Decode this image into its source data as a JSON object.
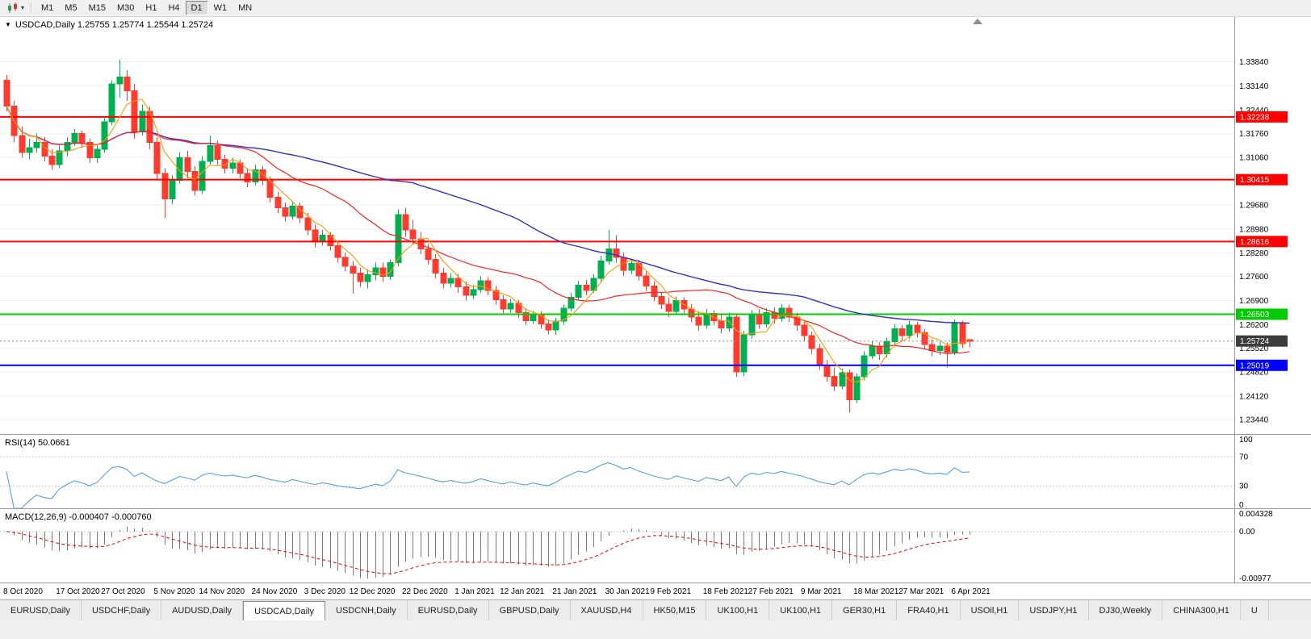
{
  "icons": {
    "collapse": "▼",
    "dropdown": "▾"
  },
  "toolbar": {
    "timeframes": [
      {
        "label": "M1",
        "selected": false
      },
      {
        "label": "M5",
        "selected": false
      },
      {
        "label": "M15",
        "selected": false
      },
      {
        "label": "M30",
        "selected": false
      },
      {
        "label": "H1",
        "selected": false
      },
      {
        "label": "H4",
        "selected": false
      },
      {
        "label": "D1",
        "selected": true
      },
      {
        "label": "W1",
        "selected": false
      },
      {
        "label": "MN",
        "selected": false
      }
    ]
  },
  "chart": {
    "info": "USDCAD,Daily 1.25755 1.25774 1.25544 1.25724"
  },
  "tabs": {
    "items": [
      "EURUSD,Daily",
      "USDCHF,Daily",
      "AUDUSD,Daily",
      "USDCAD,Daily",
      "USDCNH,Daily",
      "EURUSD,Daily",
      "GBPUSD,Daily",
      "XAUUSD,H4",
      "HK50,M15",
      "UK100,H1",
      "UK100,H1",
      "GER30,H1",
      "FRA40,H1",
      "USOil,H1",
      "USDJPY,H1",
      "DJ30,Weekly",
      "CHINA300,H1",
      "U"
    ],
    "active_index": 3
  },
  "chart_data": {
    "type": "candlestick",
    "symbol": "USDCAD",
    "timeframe": "Daily",
    "ohlc_display": {
      "open": "1.25755",
      "high": "1.25774",
      "low": "1.25544",
      "close": "1.25724"
    },
    "price_range": {
      "top": 1.3505,
      "bottom": 1.2302
    },
    "price_axis_labels": [
      "1.33840",
      "1.33140",
      "1.32440",
      "1.31760",
      "1.31060",
      "1.30360",
      "1.29680",
      "1.28980",
      "1.28280",
      "1.27600",
      "1.26900",
      "1.26200",
      "1.25520",
      "1.24820",
      "1.24120",
      "1.23440"
    ],
    "x_labels": [
      "8 Oct 2020",
      "17 Oct 2020",
      "27 Oct 2020",
      "5 Nov 2020",
      "14 Nov 2020",
      "24 Nov 2020",
      "3 Dec 2020",
      "12 Dec 2020",
      "22 Dec 2020",
      "1 Jan 2021",
      "12 Jan 2021",
      "21 Jan 2021",
      "30 Jan 2021",
      "9 Feb 2021",
      "18 Feb 2021",
      "27 Feb 2021",
      "9 Mar 2021",
      "18 Mar 2021",
      "27 Mar 2021",
      "6 Apr 2021"
    ],
    "x_label_candle_indices": [
      0,
      7,
      13,
      20,
      26,
      33,
      40,
      46,
      53,
      60,
      66,
      73,
      80,
      86,
      93,
      99,
      106,
      113,
      119,
      126
    ],
    "levels": [
      {
        "label": "1.32238",
        "price": 1.32238,
        "color": "#ff0000"
      },
      {
        "label": "1.30415",
        "price": 1.30415,
        "color": "#ff0000"
      },
      {
        "label": "1.28616",
        "price": 1.28616,
        "color": "#ff0000"
      },
      {
        "label": "1.26503",
        "price": 1.26503,
        "color": "#00cc00"
      },
      {
        "label": "1.25019",
        "price": 1.25019,
        "color": "#0000ff"
      }
    ],
    "current_price": {
      "label": "1.25724",
      "price": 1.25724,
      "color": "#3c3c3c"
    },
    "ma": {
      "fast_period": 5,
      "med_period": 20,
      "slow_period": 55
    },
    "rsi": {
      "label": "RSI(14) 50.0661",
      "period": 14,
      "axis_labels": [
        "100",
        "70",
        "30",
        "0"
      ],
      "guide_levels": [
        70,
        30
      ]
    },
    "macd": {
      "label": "MACD(12,26,9) -0.000407 -0.000760",
      "fast": 12,
      "slow": 26,
      "signal": 9,
      "axis_labels": [
        "0.004328",
        "0.00",
        "-0.00977"
      ],
      "range": [
        -0.00977,
        0.004328
      ]
    },
    "colors": {
      "up": "#00b050",
      "down": "#ff3b30",
      "ma_fast": "#ff9900",
      "ma_med": "#ff2020",
      "ma_slow": "#3030cc",
      "rsi": "#5ba0d8",
      "macd_hist": "#7a7a7a",
      "macd_signal": "#ff0000",
      "grid": "#f0f0f0"
    },
    "candles": [
      [
        1.333,
        1.3345,
        1.324,
        1.3255
      ],
      [
        1.3255,
        1.327,
        1.315,
        1.317
      ],
      [
        1.317,
        1.3195,
        1.3105,
        1.312
      ],
      [
        1.312,
        1.316,
        1.31,
        1.3135
      ],
      [
        1.3135,
        1.3175,
        1.312,
        1.315
      ],
      [
        1.315,
        1.3165,
        1.3095,
        1.311
      ],
      [
        1.311,
        1.313,
        1.307,
        1.3085
      ],
      [
        1.3085,
        1.314,
        1.3075,
        1.3125
      ],
      [
        1.3125,
        1.3165,
        1.311,
        1.315
      ],
      [
        1.315,
        1.319,
        1.314,
        1.3175
      ],
      [
        1.3175,
        1.3185,
        1.3135,
        1.315
      ],
      [
        1.315,
        1.316,
        1.309,
        1.3105
      ],
      [
        1.3105,
        1.3145,
        1.309,
        1.313
      ],
      [
        1.313,
        1.322,
        1.312,
        1.321
      ],
      [
        1.321,
        1.333,
        1.32,
        1.332
      ],
      [
        1.332,
        1.339,
        1.328,
        1.334
      ],
      [
        1.334,
        1.336,
        1.327,
        1.33
      ],
      [
        1.33,
        1.332,
        1.316,
        1.318
      ],
      [
        1.318,
        1.326,
        1.317,
        1.324
      ],
      [
        1.324,
        1.3255,
        1.313,
        1.315
      ],
      [
        1.315,
        1.3165,
        1.304,
        1.306
      ],
      [
        1.306,
        1.3075,
        1.293,
        1.2985
      ],
      [
        1.2985,
        1.3055,
        1.297,
        1.304
      ],
      [
        1.304,
        1.312,
        1.303,
        1.3105
      ],
      [
        1.3105,
        1.3125,
        1.3045,
        1.3065
      ],
      [
        1.3065,
        1.308,
        1.2995,
        1.301
      ],
      [
        1.301,
        1.311,
        1.3,
        1.3095
      ],
      [
        1.3095,
        1.317,
        1.3085,
        1.314
      ],
      [
        1.314,
        1.3155,
        1.3085,
        1.31
      ],
      [
        1.31,
        1.3115,
        1.306,
        1.3075
      ],
      [
        1.3075,
        1.3105,
        1.306,
        1.309
      ],
      [
        1.309,
        1.31,
        1.3045,
        1.306
      ],
      [
        1.306,
        1.3075,
        1.302,
        1.3035
      ],
      [
        1.3035,
        1.3085,
        1.3025,
        1.307
      ],
      [
        1.307,
        1.308,
        1.3025,
        1.304
      ],
      [
        1.304,
        1.305,
        1.2975,
        1.299
      ],
      [
        1.299,
        1.3005,
        1.2945,
        1.296
      ],
      [
        1.296,
        1.2975,
        1.292,
        1.2935
      ],
      [
        1.2935,
        1.298,
        1.2925,
        1.2965
      ],
      [
        1.2965,
        1.2975,
        1.2915,
        1.293
      ],
      [
        1.293,
        1.2945,
        1.288,
        1.2895
      ],
      [
        1.2895,
        1.291,
        1.2845,
        1.286
      ],
      [
        1.286,
        1.2895,
        1.285,
        1.288
      ],
      [
        1.288,
        1.289,
        1.2835,
        1.285
      ],
      [
        1.285,
        1.2865,
        1.28,
        1.2815
      ],
      [
        1.2815,
        1.283,
        1.2775,
        1.279
      ],
      [
        1.279,
        1.2805,
        1.271,
        1.277
      ],
      [
        1.277,
        1.2785,
        1.273,
        1.2745
      ],
      [
        1.2745,
        1.278,
        1.2725,
        1.2765
      ],
      [
        1.2765,
        1.28,
        1.275,
        1.2785
      ],
      [
        1.2785,
        1.28,
        1.2745,
        1.276
      ],
      [
        1.276,
        1.281,
        1.275,
        1.28
      ],
      [
        1.28,
        1.2955,
        1.279,
        1.294
      ],
      [
        1.294,
        1.296,
        1.2875,
        1.2895
      ],
      [
        1.2895,
        1.2925,
        1.2855,
        1.287
      ],
      [
        1.287,
        1.289,
        1.2825,
        1.284
      ],
      [
        1.284,
        1.2855,
        1.2795,
        1.281
      ],
      [
        1.281,
        1.2825,
        1.2755,
        1.277
      ],
      [
        1.277,
        1.2785,
        1.2725,
        1.274
      ],
      [
        1.274,
        1.277,
        1.2728,
        1.2755
      ],
      [
        1.2755,
        1.2768,
        1.2712,
        1.273
      ],
      [
        1.273,
        1.2745,
        1.269,
        1.2705
      ],
      [
        1.2705,
        1.2735,
        1.2695,
        1.2722
      ],
      [
        1.2722,
        1.276,
        1.2712,
        1.2748
      ],
      [
        1.2748,
        1.2758,
        1.2705,
        1.272
      ],
      [
        1.272,
        1.2732,
        1.2678,
        1.2692
      ],
      [
        1.2692,
        1.2705,
        1.265,
        1.2665
      ],
      [
        1.2665,
        1.2695,
        1.2655,
        1.2682
      ],
      [
        1.2682,
        1.2692,
        1.264,
        1.2655
      ],
      [
        1.2655,
        1.2668,
        1.2618,
        1.2632
      ],
      [
        1.2632,
        1.266,
        1.2622,
        1.2648
      ],
      [
        1.2648,
        1.2658,
        1.2608,
        1.2622
      ],
      [
        1.2622,
        1.2635,
        1.2592,
        1.2605
      ],
      [
        1.2605,
        1.264,
        1.259,
        1.263
      ],
      [
        1.263,
        1.268,
        1.262,
        1.2668
      ],
      [
        1.2668,
        1.2712,
        1.2658,
        1.27
      ],
      [
        1.27,
        1.2748,
        1.2692,
        1.2735
      ],
      [
        1.2735,
        1.275,
        1.2705,
        1.272
      ],
      [
        1.272,
        1.2768,
        1.2712,
        1.2755
      ],
      [
        1.2755,
        1.282,
        1.2745,
        1.2805
      ],
      [
        1.2805,
        1.2895,
        1.2795,
        1.284
      ],
      [
        1.284,
        1.288,
        1.28,
        1.2815
      ],
      [
        1.2815,
        1.283,
        1.2762,
        1.2778
      ],
      [
        1.2778,
        1.2812,
        1.2768,
        1.2798
      ],
      [
        1.2798,
        1.2808,
        1.2748,
        1.2762
      ],
      [
        1.2762,
        1.2775,
        1.2718,
        1.2732
      ],
      [
        1.2732,
        1.2745,
        1.2688,
        1.2702
      ],
      [
        1.2702,
        1.2715,
        1.2665,
        1.268
      ],
      [
        1.268,
        1.2698,
        1.2642,
        1.2658
      ],
      [
        1.2658,
        1.2702,
        1.2648,
        1.269
      ],
      [
        1.269,
        1.27,
        1.2652,
        1.2665
      ],
      [
        1.2665,
        1.268,
        1.2628,
        1.2642
      ],
      [
        1.2642,
        1.2658,
        1.2602,
        1.2618
      ],
      [
        1.2618,
        1.2665,
        1.2608,
        1.2652
      ],
      [
        1.2652,
        1.2662,
        1.2618,
        1.2632
      ],
      [
        1.2632,
        1.2648,
        1.2595,
        1.261
      ],
      [
        1.261,
        1.2655,
        1.26,
        1.2642
      ],
      [
        1.2642,
        1.2652,
        1.2468,
        1.2482
      ],
      [
        1.2482,
        1.2602,
        1.247,
        1.259
      ],
      [
        1.259,
        1.2662,
        1.258,
        1.265
      ],
      [
        1.265,
        1.2665,
        1.2608,
        1.2622
      ],
      [
        1.2622,
        1.2668,
        1.2612,
        1.2655
      ],
      [
        1.2655,
        1.267,
        1.2622,
        1.2638
      ],
      [
        1.2638,
        1.268,
        1.2628,
        1.2668
      ],
      [
        1.2668,
        1.2678,
        1.2628,
        1.2642
      ],
      [
        1.2642,
        1.2655,
        1.2602,
        1.2618
      ],
      [
        1.2618,
        1.263,
        1.2572,
        1.2588
      ],
      [
        1.2588,
        1.26,
        1.2535,
        1.255
      ],
      [
        1.255,
        1.2565,
        1.2488,
        1.2502
      ],
      [
        1.2502,
        1.2518,
        1.2455,
        1.247
      ],
      [
        1.247,
        1.2495,
        1.2428,
        1.2442
      ],
      [
        1.2442,
        1.2492,
        1.2432,
        1.248
      ],
      [
        1.248,
        1.249,
        1.2365,
        1.2402
      ],
      [
        1.2402,
        1.2478,
        1.2392,
        1.2468
      ],
      [
        1.2468,
        1.2542,
        1.2458,
        1.253
      ],
      [
        1.253,
        1.2572,
        1.252,
        1.2558
      ],
      [
        1.2558,
        1.2568,
        1.2518,
        1.2535
      ],
      [
        1.2535,
        1.2582,
        1.2525,
        1.257
      ],
      [
        1.257,
        1.2622,
        1.256,
        1.2608
      ],
      [
        1.2608,
        1.2618,
        1.2572,
        1.2588
      ],
      [
        1.2588,
        1.2632,
        1.2578,
        1.2618
      ],
      [
        1.2618,
        1.2628,
        1.2582,
        1.2598
      ],
      [
        1.2598,
        1.2608,
        1.2548,
        1.2562
      ],
      [
        1.2562,
        1.2578,
        1.2528,
        1.2545
      ],
      [
        1.2545,
        1.2572,
        1.2532,
        1.2558
      ],
      [
        1.2558,
        1.2568,
        1.2495,
        1.254
      ],
      [
        1.254,
        1.2635,
        1.2532,
        1.2625
      ],
      [
        1.2625,
        1.2632,
        1.2552,
        1.2565
      ],
      [
        1.2576,
        1.2577,
        1.2554,
        1.2572
      ]
    ]
  }
}
